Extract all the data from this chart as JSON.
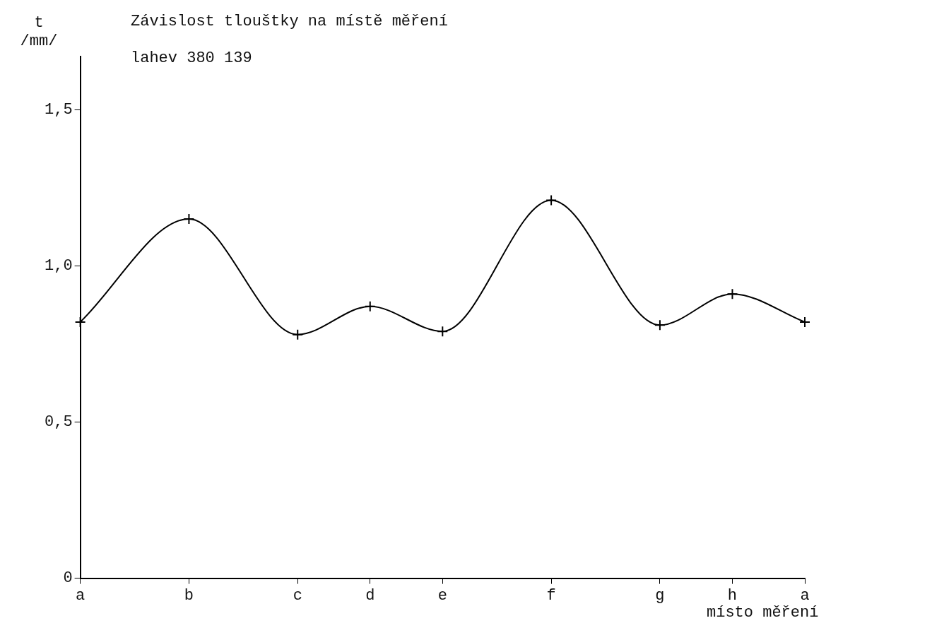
{
  "chart_data": {
    "type": "line",
    "title": "Závislost tlouštky na místě měření",
    "subtitle": "lahev 380 139",
    "ylabel": "t /mm/",
    "xlabel": "místo měření",
    "categories": [
      "a",
      null,
      null,
      "b",
      null,
      null,
      "c",
      null,
      "d",
      null,
      "e",
      null,
      null,
      "f",
      null,
      null,
      "g",
      null,
      "h",
      null,
      "a"
    ],
    "series": [
      {
        "color": "#000000",
        "values": [
          0.82,
          null,
          null,
          1.15,
          null,
          null,
          0.78,
          null,
          0.87,
          null,
          0.79,
          null,
          null,
          1.21,
          null,
          null,
          0.81,
          null,
          0.91,
          null,
          0.82
        ]
      }
    ],
    "ylim": [
      0,
      1.67
    ],
    "yticks": [
      0,
      {
        "value": 0.5,
        "label": "0,5"
      },
      {
        "value": 1,
        "label": "1,0"
      },
      {
        "value": 1.5,
        "label": "1,5"
      }
    ],
    "grid": false,
    "legend": false,
    "marker": "cross",
    "line_style": "solid"
  }
}
